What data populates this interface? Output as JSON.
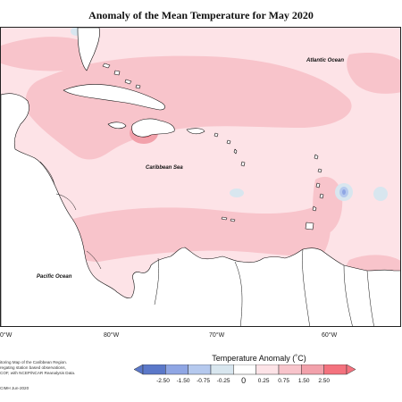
{
  "title": "Anomaly of the Mean Temperature for May 2020",
  "map": {
    "labels": {
      "atlantic": "Atlantic Ocean",
      "caribbean": "Caribbean Sea",
      "pacific": "Pacific Ocean"
    },
    "lon_ticks": [
      "80°W",
      "70°W",
      "60°W"
    ],
    "lon_ticks_partial": [
      "0°W"
    ]
  },
  "legend": {
    "title": "Temperature Anomaly (˚C)",
    "ticks": [
      "-2.50",
      "-1.50",
      "-0.75",
      "-0.25",
      "0",
      "0.25",
      "0.75",
      "1.50",
      "2.50"
    ],
    "colors": [
      "#5b78c9",
      "#8fa6e4",
      "#b5c9ee",
      "#d8e6ef",
      "#ffffff",
      "#fde3e7",
      "#f8c4cb",
      "#f2a1ab",
      "#f4727e"
    ]
  },
  "credits": [
    "itoring Map of the Caribbean Region.",
    "regating station based observations,",
    "COF, with NCEP/NCAR Reanalysis Data.",
    "CIMH Jun-2020"
  ],
  "colors": {
    "anomaly_0_25": "#fde3e7",
    "anomaly_0_75": "#f8c4cb",
    "anomaly_1_50": "#f2a1ab",
    "anomaly_2_50": "#f4727e",
    "anomaly_neg_0_25": "#d8e6ef",
    "anomaly_neg_0_75": "#b5c9ee",
    "anomaly_neg_1_50": "#8fa6e4",
    "land": "#ffffff",
    "coast": "#111111"
  }
}
